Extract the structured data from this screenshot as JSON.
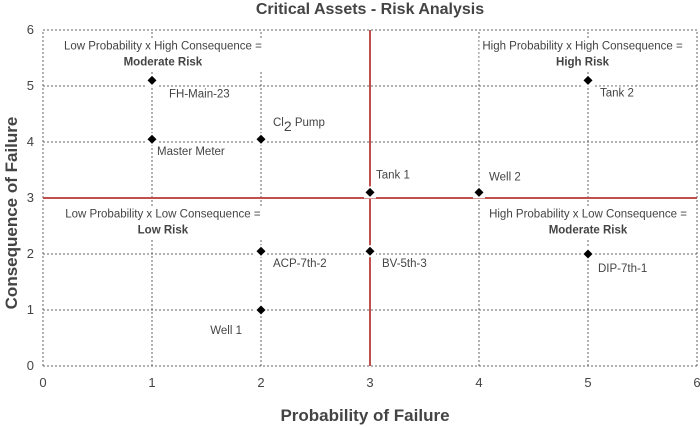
{
  "chart_data": {
    "type": "scatter",
    "title": "Critical Assets - Risk Analysis",
    "xlabel": "Probability of Failure",
    "ylabel": "Consequence of Failure",
    "xlim": [
      0,
      6
    ],
    "ylim": [
      0,
      6
    ],
    "xticks": [
      "0",
      "1",
      "2",
      "3",
      "4",
      "5",
      "6"
    ],
    "yticks": [
      "0",
      "1",
      "2",
      "3",
      "4",
      "5",
      "6"
    ],
    "grid": true,
    "divider": {
      "x": 3,
      "y": 3,
      "color": "#c0504d"
    },
    "marker_color": "#000000",
    "points": [
      {
        "label": "FH-Main-23",
        "x": 1,
        "y": 5.1
      },
      {
        "label": "Master Meter",
        "x": 1,
        "y": 4.05
      },
      {
        "label": "Cl",
        "label_sub": "2",
        "label_rest": " Pump",
        "x": 2,
        "y": 4.05
      },
      {
        "label": "Tank 1",
        "x": 3,
        "y": 3.1
      },
      {
        "label": "Well 2",
        "x": 4,
        "y": 3.1
      },
      {
        "label": "Tank 2",
        "x": 5,
        "y": 5.1
      },
      {
        "label": "ACP-7th-2",
        "x": 2,
        "y": 2.05
      },
      {
        "label": "BV-5th-3",
        "x": 3,
        "y": 2.05
      },
      {
        "label": "DIP-7th-1",
        "x": 5,
        "y": 2
      },
      {
        "label": "Well 1",
        "x": 2,
        "y": 1
      }
    ],
    "quadrants": [
      {
        "line1": "Low Probability x High Consequence =",
        "line2": "Moderate Risk",
        "x": 1.1,
        "y": 5.65
      },
      {
        "line1": "High Probability x High Consequence =",
        "line2": "High Risk",
        "x": 4.95,
        "y": 5.65
      },
      {
        "line1": "Low Probability x Low Consequence =",
        "line2": "Low Risk",
        "x": 1.1,
        "y": 2.65
      },
      {
        "line1": "High Probability x Low Consequence =",
        "line2": "Moderate Risk",
        "x": 5.0,
        "y": 2.65
      }
    ]
  }
}
